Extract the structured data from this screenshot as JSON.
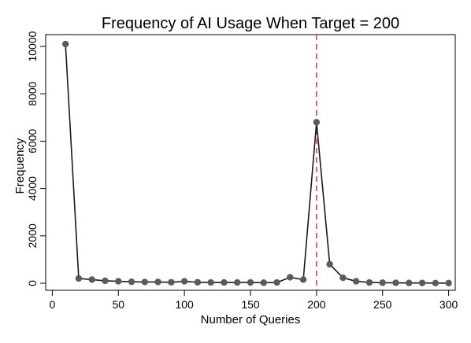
{
  "chart_data": {
    "type": "line",
    "title": "Frequency of AI Usage When Target = 200",
    "xlabel": "Number of Queries",
    "ylabel": "Frequency",
    "xlim": [
      -5,
      305
    ],
    "ylim": [
      -300,
      10500
    ],
    "xticks": [
      0,
      50,
      100,
      150,
      200,
      250,
      300
    ],
    "yticks": [
      0,
      2000,
      4000,
      6000,
      8000,
      10000
    ],
    "grid": false,
    "legend": "none",
    "reference_line": {
      "x": 200,
      "style": "dashed",
      "color": "#e0474c"
    },
    "series": [
      {
        "x": [
          10,
          20,
          30,
          40,
          50,
          60,
          70,
          80,
          90,
          100,
          110,
          120,
          130,
          140,
          150,
          160,
          170,
          180,
          190,
          200,
          210,
          220,
          230,
          240,
          250,
          260,
          270,
          280,
          290,
          300
        ],
        "values": [
          10100,
          200,
          150,
          100,
          80,
          60,
          50,
          50,
          40,
          80,
          40,
          30,
          30,
          30,
          30,
          20,
          30,
          250,
          150,
          6800,
          800,
          230,
          80,
          30,
          20,
          15,
          10,
          10,
          5,
          5
        ],
        "color": "#1a1a1a",
        "marker_color": "#5a5a5a"
      }
    ]
  }
}
